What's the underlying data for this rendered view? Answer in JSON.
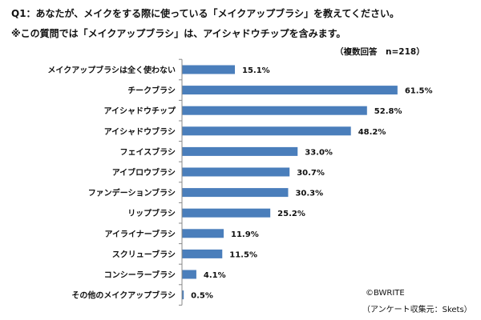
{
  "header": {
    "title_line1": "Q1：あなたが、メイクをする際に使っている「メイクアップブラシ」を教えてください。",
    "title_line2": "※この質問では「メイクアップブラシ」は、アイシャドウチップを含みます。",
    "sample_note": "（複数回答　n=218）"
  },
  "footer": {
    "copyright": "©BWRITE",
    "source": "（アンケート収集元：Skets）"
  },
  "colors": {
    "bar": "#4a7ebb",
    "axis": "#888888"
  },
  "chart_data": {
    "type": "bar",
    "orientation": "horizontal",
    "categories": [
      "メイクアップブラシは全く使わない",
      "チークブラシ",
      "アイシャドウチップ",
      "アイシャドウブラシ",
      "フェイスブラシ",
      "アイブロウブラシ",
      "ファンデーションブラシ",
      "リップブラシ",
      "アイライナーブラシ",
      "スクリューブラシ",
      "コンシーラーブラシ",
      "その他のメイクアップブラシ"
    ],
    "values": [
      15.1,
      61.5,
      52.8,
      48.2,
      33.0,
      30.7,
      30.3,
      25.2,
      11.9,
      11.5,
      4.1,
      0.5
    ],
    "value_labels": [
      "15.1%",
      "61.5%",
      "52.8%",
      "48.2%",
      "33.0%",
      "30.7%",
      "30.3%",
      "25.2%",
      "11.9%",
      "11.5%",
      "4.1%",
      "0.5%"
    ],
    "value_unit": "%",
    "xlim": [
      0,
      70
    ],
    "grid": false,
    "legend": "none"
  }
}
